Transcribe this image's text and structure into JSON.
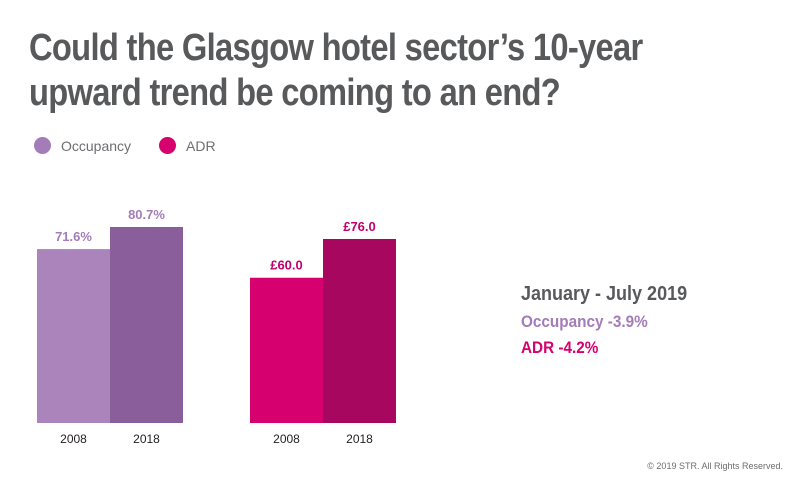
{
  "title": "Could the Glasgow hotel sector’s 10-year upward trend be coming to an end?",
  "legend": [
    {
      "label": "Occupancy",
      "color": "#a47cb8"
    },
    {
      "label": "ADR",
      "color": "#d6006f"
    }
  ],
  "chart_data": {
    "type": "bar",
    "series": [
      {
        "name": "Occupancy",
        "categories": [
          "2008",
          "2018"
        ],
        "values": [
          71.6,
          80.7
        ],
        "labels": [
          "71.6%",
          "80.7%"
        ],
        "colors": [
          "#ab84bb",
          "#8a5e9b"
        ],
        "label_color": "#a47cb8"
      },
      {
        "name": "ADR",
        "categories": [
          "2008",
          "2018"
        ],
        "values": [
          60.0,
          76.0
        ],
        "labels": [
          "£60.0",
          "£76.0"
        ],
        "colors": [
          "#d6006f",
          "#a8075f"
        ],
        "label_color": "#c0006a"
      }
    ]
  },
  "annotation": {
    "heading": "January - July 2019",
    "occupancy": "Occupancy -3.9%",
    "adr": "ADR -4.2%",
    "heading_color": "#58595b",
    "occupancy_color": "#a47cb8",
    "adr_color": "#d6006f"
  },
  "copyright": "© 2019 STR. All Rights Reserved."
}
